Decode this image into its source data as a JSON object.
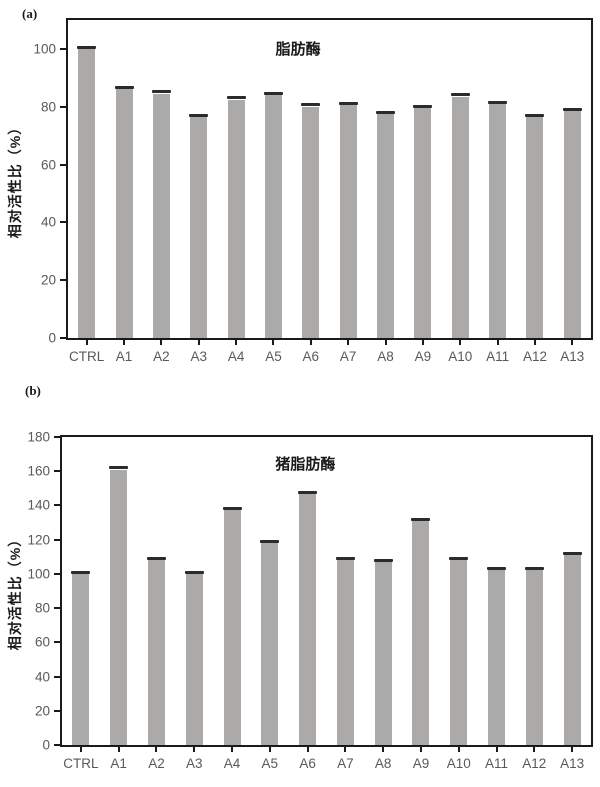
{
  "colors": {
    "bar": "#ACA9A9",
    "error_cap": "#2B2B2B",
    "axis": "#1A1A1A",
    "tick_label": "#595959",
    "title": "#1A1A1A"
  },
  "chart_data": [
    {
      "type": "bar",
      "panel_label": "(a)",
      "title": "脂肪酶",
      "ylabel": "相对活性比（%）",
      "xlabel": "",
      "categories": [
        "CTRL",
        "A1",
        "A2",
        "A3",
        "A4",
        "A5",
        "A6",
        "A7",
        "A8",
        "A9",
        "A10",
        "A11",
        "A12",
        "A13"
      ],
      "values": [
        100,
        86,
        84.5,
        76.5,
        82.5,
        84,
        80,
        80.5,
        77.5,
        79.5,
        83.5,
        81,
        76.5,
        78.5
      ],
      "errors": [
        0.8,
        0.8,
        0.8,
        0.8,
        0.8,
        0.8,
        0.8,
        0.8,
        0.8,
        0.8,
        0.8,
        0.8,
        0.8,
        0.8
      ],
      "yticks": [
        0,
        20,
        40,
        60,
        80,
        100
      ],
      "ylim": [
        0,
        110
      ],
      "grid": false,
      "legend": "none"
    },
    {
      "type": "bar",
      "panel_label": "(b)",
      "title": "猪脂肪酶",
      "ylabel": "相对活性比（%）",
      "xlabel": "",
      "categories": [
        "CTRL",
        "A1",
        "A2",
        "A3",
        "A4",
        "A5",
        "A6",
        "A7",
        "A8",
        "A9",
        "A10",
        "A11",
        "A12",
        "A13"
      ],
      "values": [
        100,
        161,
        108,
        100,
        137.5,
        118,
        146.5,
        108,
        107,
        131,
        108,
        102.5,
        102.5,
        111
      ],
      "errors": [
        1.2,
        1.2,
        1.2,
        1.2,
        1.2,
        1.2,
        1.2,
        1.2,
        1.2,
        1.2,
        1.2,
        1.2,
        1.2,
        1.2
      ],
      "yticks": [
        0,
        20,
        40,
        60,
        80,
        100,
        120,
        140,
        160,
        180
      ],
      "ylim": [
        0,
        180
      ],
      "grid": false,
      "legend": "none"
    }
  ]
}
